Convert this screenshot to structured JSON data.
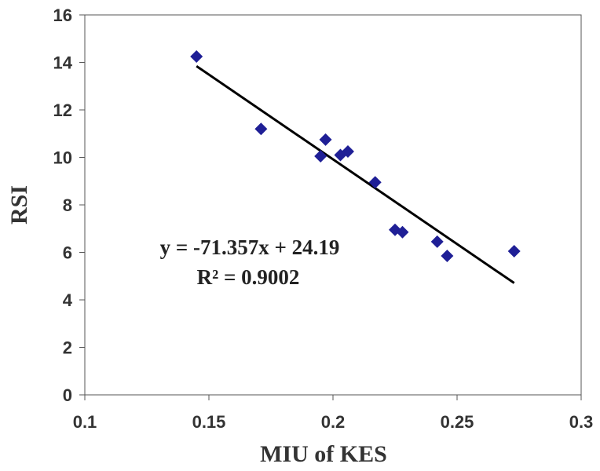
{
  "chart_data": {
    "type": "scatter",
    "xlabel": "MIU of KES",
    "ylabel": "RSI",
    "xlim": [
      0.1,
      0.3
    ],
    "ylim": [
      0,
      16
    ],
    "x_ticks": [
      "0.1",
      "0.15",
      "0.2",
      "0.25",
      "0.3"
    ],
    "y_ticks": [
      "0",
      "2",
      "4",
      "6",
      "8",
      "10",
      "12",
      "14",
      "16"
    ],
    "grid": false,
    "series": [
      {
        "marker": "diamond",
        "color": "#1f1f96",
        "points": [
          {
            "x": 0.145,
            "y": 14.25
          },
          {
            "x": 0.171,
            "y": 11.2
          },
          {
            "x": 0.195,
            "y": 10.05
          },
          {
            "x": 0.197,
            "y": 10.75
          },
          {
            "x": 0.203,
            "y": 10.1
          },
          {
            "x": 0.206,
            "y": 10.25
          },
          {
            "x": 0.217,
            "y": 8.95
          },
          {
            "x": 0.225,
            "y": 6.95
          },
          {
            "x": 0.228,
            "y": 6.85
          },
          {
            "x": 0.242,
            "y": 6.45
          },
          {
            "x": 0.246,
            "y": 5.85
          },
          {
            "x": 0.273,
            "y": 6.05
          }
        ]
      }
    ],
    "trendline": {
      "type": "linear",
      "slope": -71.357,
      "intercept": 24.19,
      "x_range": [
        0.145,
        0.273
      ],
      "color": "#000000",
      "equation_label": "y = -71.357x + 24.19",
      "r2_label": "R² = 0.9002"
    }
  }
}
